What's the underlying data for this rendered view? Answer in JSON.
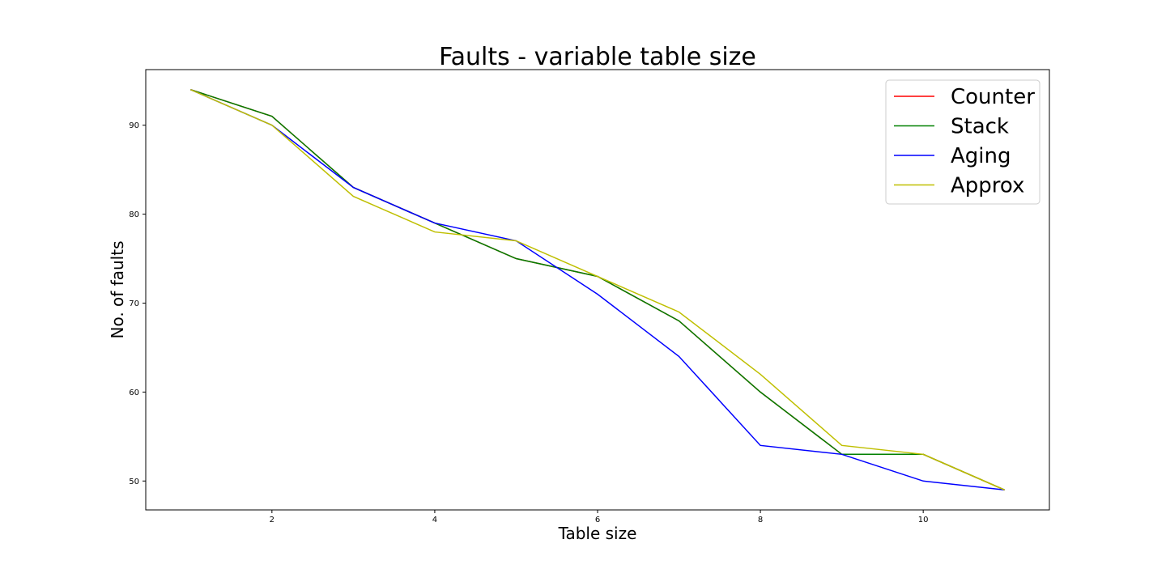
{
  "chart_data": {
    "type": "line",
    "title": "Faults - variable table size",
    "xlabel": "Table size",
    "ylabel": "No. of faults",
    "x": [
      1,
      2,
      3,
      4,
      5,
      6,
      7,
      8,
      9,
      10,
      11
    ],
    "xlim": [
      0.45,
      11.55
    ],
    "ylim": [
      46.75,
      96.25
    ],
    "xticks": [
      2,
      4,
      6,
      8,
      10
    ],
    "yticks": [
      50,
      60,
      70,
      80,
      90
    ],
    "grid": false,
    "legend_position": "top-right",
    "series": [
      {
        "name": "Counter",
        "color": "#ff0000",
        "values": [
          94,
          91,
          83,
          79,
          75,
          73,
          68,
          60,
          53,
          53,
          49
        ]
      },
      {
        "name": "Stack",
        "color": "#008000",
        "values": [
          94,
          91,
          83,
          79,
          75,
          73,
          68,
          60,
          53,
          53,
          49
        ]
      },
      {
        "name": "Aging",
        "color": "#0000ff",
        "values": [
          94,
          90,
          83,
          79,
          77,
          71,
          64,
          54,
          53,
          50,
          49
        ]
      },
      {
        "name": "Approx",
        "color": "#bfbf00",
        "values": [
          94,
          90,
          82,
          78,
          77,
          73,
          69,
          62,
          54,
          53,
          49
        ]
      }
    ]
  }
}
